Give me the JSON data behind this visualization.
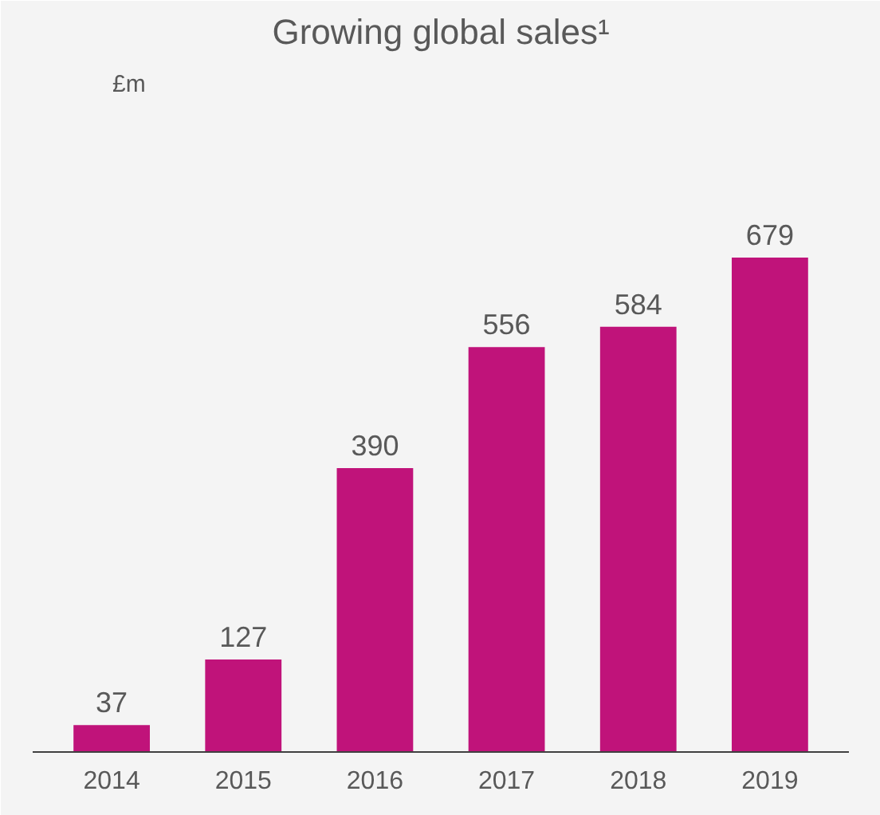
{
  "chart_data": {
    "type": "bar",
    "title": "Growing global sales¹",
    "annotations": [
      "£m"
    ],
    "categories": [
      "2014",
      "2015",
      "2016",
      "2017",
      "2018",
      "2019"
    ],
    "values": [
      37,
      127,
      390,
      556,
      584,
      679
    ],
    "color": "#c0137a",
    "data_labels": true,
    "grid": false
  }
}
